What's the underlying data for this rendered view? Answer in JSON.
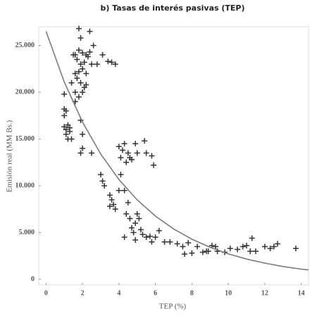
{
  "chart_data": {
    "type": "scatter",
    "title": "b) Tasas de interés pasivas (TEP)",
    "xlabel": "TEP (%)",
    "ylabel": "Emisión real (MM Bs.)",
    "xlim": [
      -0.4,
      14.4
    ],
    "ylim": [
      -600,
      27000
    ],
    "xticks": [
      0,
      2,
      4,
      6,
      8,
      10,
      12,
      14
    ],
    "yticks": [
      0,
      {
        "value": 5000,
        "label": "5.000"
      },
      {
        "value": 10000,
        "label": "10.000"
      },
      {
        "value": 15000,
        "label": "15.000"
      },
      {
        "value": 20000,
        "label": "20.000"
      },
      {
        "value": 25000,
        "label": "25.000"
      }
    ],
    "series": [
      {
        "mode": "markers",
        "color": "#333333",
        "x": [
          1.0,
          1.0,
          1.1,
          1.0,
          1.2,
          1.3,
          1.1,
          1.2,
          1.4,
          1.0,
          1.1,
          1.3,
          1.8,
          2.4,
          1.9,
          1.6,
          1.8,
          2.0,
          2.2,
          2.4,
          2.6,
          1.7,
          1.9,
          2.1,
          2.5,
          1.6,
          1.8,
          2.0,
          2.2,
          1.7,
          1.9,
          2.1,
          2.2,
          1.6,
          1.8,
          1.6,
          2.0,
          2.3,
          3.1,
          3.4,
          3.6,
          3.8,
          2.8,
          1.4,
          1.5,
          1.9,
          2.0,
          1.9,
          2.0,
          2.5,
          3.0,
          3.1,
          3.2,
          3.5,
          3.6,
          3.7,
          3.8,
          3.5,
          4.0,
          4.1,
          4.3,
          4.0,
          4.2,
          4.3,
          4.5,
          4.6,
          4.4,
          4.7,
          4.9,
          5.0,
          5.4,
          5.5,
          5.8,
          5.9,
          4.1,
          4.4,
          4.6,
          4.7,
          4.8,
          4.9,
          5.0,
          5.1,
          5.2,
          5.3,
          4.9,
          5.5,
          5.7,
          6.0,
          6.2,
          4.3,
          5.8,
          4.5,
          6.5,
          6.8,
          7.2,
          7.5,
          7.8,
          7.6,
          8.0,
          8.3,
          8.6,
          8.9,
          9.1,
          9.3,
          9.4,
          9.8,
          10.1,
          10.5,
          10.8,
          11.0,
          11.3,
          11.5,
          12.0,
          12.3,
          12.5,
          12.7,
          13.7,
          11.2,
          8.8
        ],
        "values": [
          19800,
          18200,
          18000,
          16300,
          16500,
          16200,
          15500,
          15000,
          15000,
          17500,
          16000,
          15800,
          26800,
          26500,
          25800,
          24000,
          24500,
          24200,
          24000,
          24300,
          25000,
          23500,
          23000,
          23200,
          23000,
          22000,
          22200,
          22500,
          22000,
          21500,
          21000,
          20500,
          20800,
          20000,
          19500,
          19000,
          20000,
          23800,
          24000,
          23300,
          23200,
          23000,
          23000,
          21000,
          24000,
          17000,
          15500,
          13500,
          14000,
          13500,
          11200,
          10500,
          10000,
          9000,
          8500,
          8000,
          7500,
          7800,
          9500,
          11200,
          9500,
          14200,
          13800,
          14500,
          13500,
          13000,
          12500,
          12800,
          14500,
          13500,
          14800,
          13500,
          13200,
          12200,
          13000,
          7000,
          6500,
          5500,
          5000,
          6000,
          7000,
          6500,
          5300,
          4800,
          4200,
          4500,
          4600,
          4500,
          5200,
          4500,
          4000,
          8200,
          4000,
          4000,
          3800,
          3500,
          3900,
          2700,
          2800,
          3500,
          2900,
          3000,
          3600,
          3500,
          3000,
          2900,
          3300,
          3200,
          3500,
          3600,
          4400,
          3000,
          3500,
          3300,
          3500,
          3800,
          3300,
          3000,
          3000
        ]
      },
      {
        "mode": "line",
        "color": "#7a7a7a",
        "x": [
          0,
          1,
          2,
          3,
          4,
          5,
          6,
          7,
          8,
          9,
          10,
          11,
          12,
          13,
          14,
          14.4
        ],
        "values": [
          26500,
          21100,
          16810,
          13390,
          10660,
          8490,
          6760,
          5390,
          4290,
          3420,
          2720,
          2170,
          1730,
          1370,
          1090,
          1000
        ]
      }
    ]
  }
}
